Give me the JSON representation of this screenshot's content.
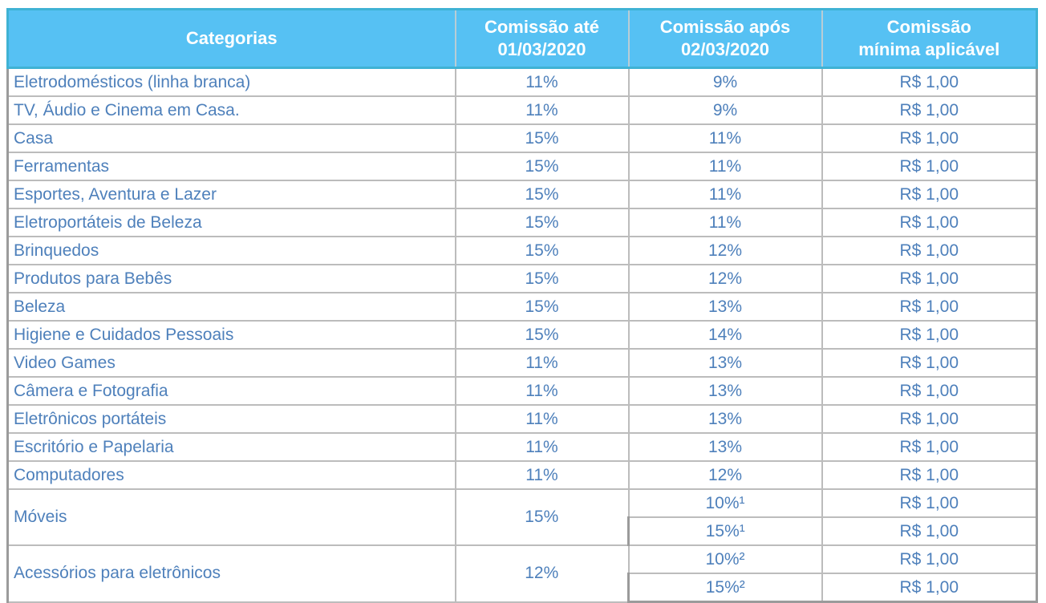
{
  "colors": {
    "header_bg": "#56c1f3",
    "header_text": "#ffffff",
    "header_border": "#3fb2d4",
    "header_sep": "#b9cdd5",
    "cell_text": "#4e80bb",
    "grid": "#bcbcbc",
    "outer_border": "#9b9b9b"
  },
  "table": {
    "headers": [
      "Categorias",
      "Comissão até\n01/03/2020",
      "Comissão após\n02/03/2020",
      "Comissão\nmínima aplicável"
    ],
    "rows": [
      {
        "category": "Eletrodomésticos (linha branca)",
        "before": "11%",
        "after": "9%",
        "min": "R$ 1,00"
      },
      {
        "category": "TV, Áudio e Cinema em Casa.",
        "before": "11%",
        "after": "9%",
        "min": "R$ 1,00"
      },
      {
        "category": "Casa",
        "before": "15%",
        "after": "11%",
        "min": "R$ 1,00"
      },
      {
        "category": "Ferramentas",
        "before": "15%",
        "after": "11%",
        "min": "R$ 1,00"
      },
      {
        "category": "Esportes, Aventura e Lazer",
        "before": "15%",
        "after": "11%",
        "min": "R$ 1,00"
      },
      {
        "category": "Eletroportáteis de Beleza",
        "before": "15%",
        "after": "11%",
        "min": "R$ 1,00"
      },
      {
        "category": "Brinquedos",
        "before": "15%",
        "after": "12%",
        "min": "R$ 1,00"
      },
      {
        "category": "Produtos para Bebês",
        "before": "15%",
        "after": "12%",
        "min": "R$ 1,00"
      },
      {
        "category": "Beleza",
        "before": "15%",
        "after": "13%",
        "min": "R$ 1,00"
      },
      {
        "category": "Higiene e Cuidados Pessoais",
        "before": "15%",
        "after": "14%",
        "min": "R$ 1,00"
      },
      {
        "category": "Video Games",
        "before": "11%",
        "after": "13%",
        "min": "R$ 1,00"
      },
      {
        "category": "Câmera e Fotografia",
        "before": "11%",
        "after": "13%",
        "min": "R$ 1,00"
      },
      {
        "category": "Eletrônicos portáteis",
        "before": "11%",
        "after": "13%",
        "min": "R$ 1,00"
      },
      {
        "category": "Escritório e Papelaria",
        "before": "11%",
        "after": "13%",
        "min": "R$ 1,00"
      },
      {
        "category": "Computadores",
        "before": "11%",
        "after": "12%",
        "min": "R$ 1,00"
      },
      {
        "category": "Móveis",
        "before": "15%",
        "sub": [
          {
            "after": "10%¹",
            "min": "R$ 1,00"
          },
          {
            "after": "15%¹",
            "min": "R$ 1,00"
          }
        ]
      },
      {
        "category": "Acessórios para eletrônicos",
        "before": "12%",
        "sub": [
          {
            "after": "10%²",
            "min": "R$ 1,00"
          },
          {
            "after": "15%²",
            "min": "R$ 1,00"
          }
        ]
      }
    ]
  }
}
